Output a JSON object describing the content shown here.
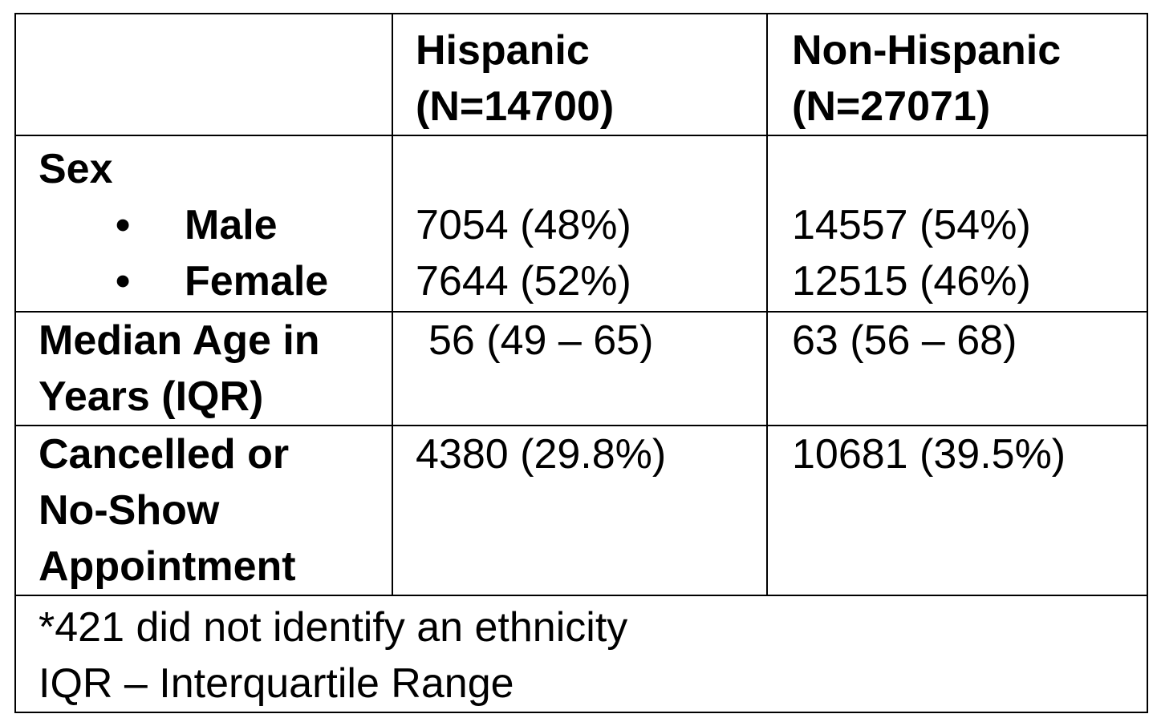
{
  "table": {
    "header": {
      "corner": "",
      "hispanic_line1": "Hispanic",
      "hispanic_line2": "(N=14700)",
      "nonhispanic_line1": "Non-Hispanic",
      "nonhispanic_line2": "(N=27071)"
    },
    "rows": {
      "sex": {
        "label": "Sex",
        "bullet": "•",
        "male_label": "Male",
        "female_label": "Female",
        "hispanic_male": "7054 (48%)",
        "hispanic_female": "7644 (52%)",
        "nonhispanic_male": "14557 (54%)",
        "nonhispanic_female": "12515 (46%)"
      },
      "age": {
        "label_line1": "Median Age in",
        "label_line2": "Years (IQR)",
        "hispanic": "56 (49 – 65)",
        "nonhispanic": "63 (56 – 68)"
      },
      "cancelled": {
        "label_line1": "Cancelled or",
        "label_line2": "No-Show",
        "label_line3": "Appointment",
        "hispanic": "4380 (29.8%)",
        "nonhispanic": "10681 (39.5%)"
      }
    },
    "footnotes": {
      "line1": "*421 did not identify an ethnicity",
      "line2": "IQR – Interquartile Range"
    }
  }
}
